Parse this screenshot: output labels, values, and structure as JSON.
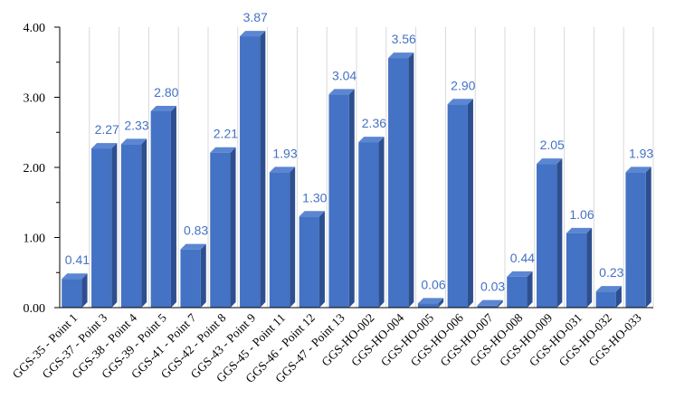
{
  "chart_data": {
    "type": "bar",
    "title": "",
    "xlabel": "",
    "ylabel": "",
    "ylim": [
      0,
      4
    ],
    "yticks": [
      "0.00",
      "1.00",
      "2.00",
      "3.00",
      "4.00"
    ],
    "grid": "vertical minor lines only",
    "legend": "none",
    "colors": {
      "bar_front": "#4472C4",
      "bar_top": "#5B86D2",
      "bar_side": "#2E4F8F",
      "data_label": "#4472C4",
      "grid": "#D9D9D9",
      "axis": "#000000"
    },
    "categories": [
      "GGS-35 - Point 1",
      "GGS-37 - Point 3",
      "GGS-38 - Point 4",
      "GGS-39 - Point 5",
      "GGS-41 - Point 7",
      "GGS-42 - Point 8",
      "GGS-43 - Point 9",
      "GGS-45 - Point 11",
      "GGS-46 - Point 12",
      "GGS-47 - Point 13",
      "GGS-HO-002",
      "GGS-HO-004",
      "GGS-HO-005",
      "GGS-HO-006",
      "GGS-HO-007",
      "GGS-HO-008",
      "GGS-HO-009",
      "GGS-HO-031",
      "GGS-HO-032",
      "GGS-HO-033"
    ],
    "values": [
      0.41,
      2.27,
      2.33,
      2.8,
      0.83,
      2.21,
      3.87,
      1.93,
      1.3,
      3.04,
      2.36,
      3.56,
      0.06,
      2.9,
      0.03,
      0.44,
      2.05,
      1.06,
      0.23,
      1.93
    ],
    "data_labels": [
      "0.41",
      "2.27",
      "2.33",
      "2.80",
      "0.83",
      "2.21",
      "3.87",
      "1.93",
      "1.30",
      "3.04",
      "2.36",
      "3.56",
      "0.06",
      "2.90",
      "0.03",
      "0.44",
      "2.05",
      "1.06",
      "0.23",
      "1.93"
    ]
  }
}
